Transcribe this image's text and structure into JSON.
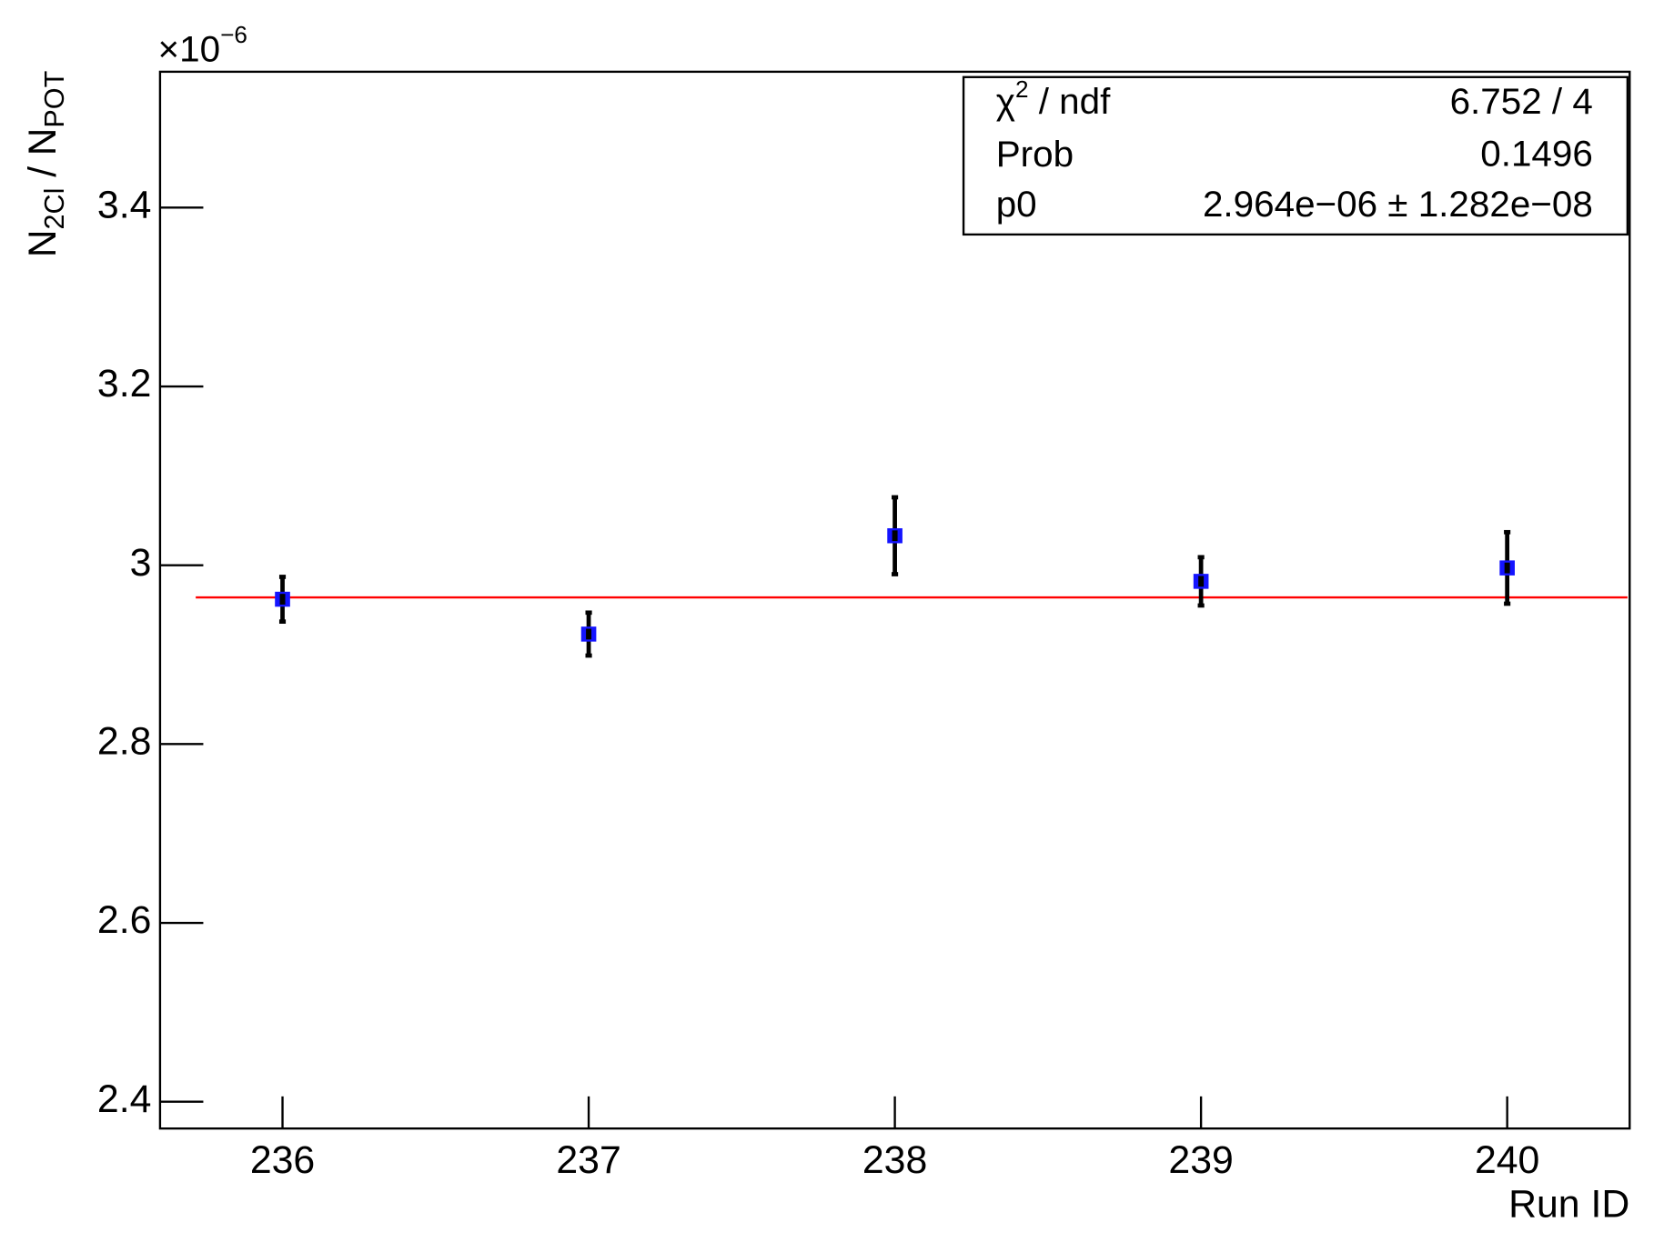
{
  "chart_data": {
    "type": "scatter",
    "y_multiplier": [
      "×10",
      "−6"
    ],
    "ylabel": [
      "N",
      "2Cl",
      " / N",
      "POT"
    ],
    "xlabel": "Run ID",
    "x": [
      236,
      237,
      238,
      239,
      240
    ],
    "series": [
      {
        "color": "#1414ff",
        "values": [
          2.962,
          2.923,
          3.033,
          2.982,
          2.997
        ],
        "errors": [
          0.025,
          0.024,
          0.043,
          0.027,
          0.04
        ]
      }
    ],
    "fit": {
      "value": 2.964,
      "color": "#ff0000"
    },
    "xlim": [
      235.6,
      240.4
    ],
    "ylim": [
      2.37,
      3.552
    ],
    "xticks": [
      236,
      237,
      238,
      239,
      240
    ],
    "yticks": [
      2.4,
      2.6,
      2.8,
      {
        "value": 3.0,
        "label": "3"
      },
      3.2,
      3.4
    ],
    "stats": [
      {
        "label": [
          "χ",
          "2",
          " / ndf"
        ],
        "value": "6.752 / 4"
      },
      {
        "label": [
          "Prob"
        ],
        "value": "0.1496"
      },
      {
        "label": [
          "p0"
        ],
        "value": "2.964e−06 ± 1.282e−08"
      }
    ]
  }
}
